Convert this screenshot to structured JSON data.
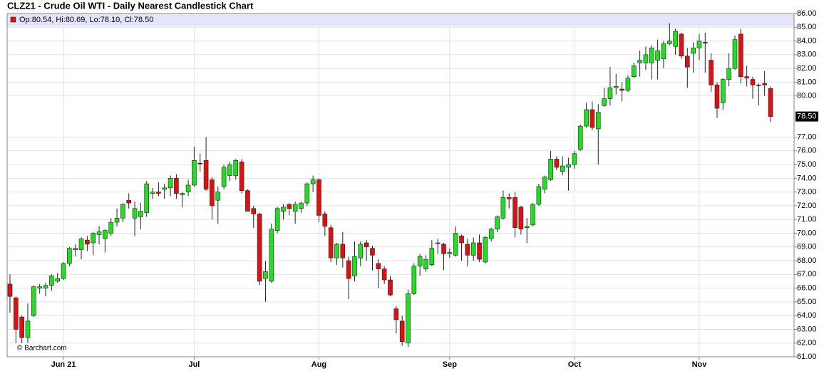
{
  "chart_data": {
    "type": "candlestick",
    "title": "CLZ21 - Crude Oil WTI - Daily Nearest Candlestick Chart",
    "legend_text": "Op:80.54, Hi:80.69, Lo:78.10, Cl:78.50",
    "last_price_label": "78.50",
    "watermark": "© Barchart.com",
    "up_color": "#22dd22",
    "down_color": "#dd1111",
    "grid": true,
    "categories": [
      null,
      null,
      null,
      null,
      null,
      null,
      null,
      null,
      null,
      "Jun 21",
      null,
      null,
      null,
      null,
      null,
      null,
      null,
      null,
      null,
      null,
      null,
      null,
      null,
      null,
      null,
      null,
      null,
      null,
      null,
      null,
      null,
      "Jul",
      null,
      null,
      null,
      null,
      null,
      null,
      null,
      null,
      null,
      null,
      null,
      null,
      null,
      null,
      null,
      null,
      null,
      null,
      null,
      null,
      "Aug",
      null,
      null,
      null,
      null,
      null,
      null,
      null,
      null,
      null,
      null,
      null,
      null,
      null,
      null,
      null,
      null,
      null,
      null,
      null,
      null,
      null,
      "Sep",
      null,
      null,
      null,
      null,
      null,
      null,
      null,
      null,
      null,
      null,
      null,
      null,
      null,
      null,
      null,
      null,
      null,
      null,
      null,
      null,
      "Oct",
      null,
      null,
      null,
      null,
      null,
      null,
      null,
      null,
      null,
      null,
      null,
      null,
      null,
      null,
      null,
      null,
      null,
      null,
      null,
      null,
      "Nov",
      null,
      null,
      null,
      null,
      null,
      null,
      null,
      null,
      null,
      null,
      null,
      null
    ],
    "open": [
      66.3,
      65.3,
      63.9,
      62.4,
      64.0,
      66.0,
      66.0,
      66.2,
      66.5,
      66.7,
      67.8,
      68.8,
      68.8,
      69.5,
      69.3,
      69.9,
      69.6,
      70.0,
      70.8,
      71.1,
      72.4,
      71.1,
      71.2,
      71.5,
      72.9,
      73.0,
      73.2,
      73.3,
      74.0,
      72.8,
      73.0,
      73.5,
      75.1,
      75.3,
      73.9,
      72.4,
      73.4,
      74.2,
      74.2,
      75.2,
      73.1,
      71.8,
      71.4,
      66.7,
      66.5,
      70.2,
      71.6,
      72.1,
      71.6,
      71.8,
      72.2,
      73.6,
      73.9,
      71.4,
      70.4,
      68.2,
      69.2,
      68.0,
      66.9,
      68.2,
      69.3,
      68.9,
      67.8,
      67.4,
      66.6,
      64.5,
      63.6,
      62.0,
      65.6,
      67.6,
      67.4,
      67.7,
      69.3,
      69.2,
      68.5,
      68.4,
      69.8,
      69.2,
      68.4,
      69.3,
      67.9,
      69.6,
      70.3,
      71.1,
      72.6,
      72.6,
      71.9,
      70.4,
      70.6,
      72.1,
      73.2,
      73.9,
      75.4,
      74.5,
      74.8,
      75.0,
      76.1,
      77.8,
      79.0,
      77.6,
      79.3,
      79.8,
      80.6,
      80.5,
      80.4,
      81.4,
      82.4,
      82.4,
      82.4,
      82.6,
      82.7,
      83.8,
      83.6,
      84.5,
      82.9,
      83.1,
      83.5,
      83.9,
      82.6,
      80.8,
      79.5,
      81.2,
      82.0,
      84.5,
      81.4,
      81.2,
      80.8,
      80.9,
      80.54
    ],
    "high": [
      67.0,
      65.4,
      64.0,
      64.9,
      66.2,
      66.3,
      66.4,
      67.0,
      67.1,
      67.9,
      69.0,
      69.2,
      69.7,
      69.8,
      70.1,
      70.5,
      70.3,
      71.1,
      71.8,
      72.2,
      72.9,
      72.3,
      72.2,
      73.8,
      73.3,
      73.7,
      73.6,
      74.2,
      74.3,
      73.0,
      73.9,
      76.3,
      75.8,
      77.0,
      74.1,
      73.4,
      75.0,
      75.2,
      75.4,
      75.4,
      73.2,
      72.0,
      71.5,
      68.0,
      70.7,
      71.9,
      72.1,
      72.2,
      72.3,
      72.3,
      73.7,
      74.2,
      74.0,
      71.6,
      70.6,
      69.3,
      70.1,
      68.3,
      69.4,
      69.4,
      69.5,
      69.1,
      68.1,
      67.6,
      66.9,
      64.7,
      64.0,
      65.9,
      67.8,
      68.5,
      68.4,
      69.5,
      69.6,
      69.3,
      68.9,
      70.5,
      69.9,
      69.6,
      69.7,
      69.9,
      69.8,
      70.4,
      71.3,
      73.1,
      72.9,
      73.0,
      72.0,
      71.1,
      72.2,
      73.6,
      74.2,
      76.0,
      75.6,
      75.6,
      75.5,
      76.0,
      77.9,
      79.5,
      79.6,
      79.4,
      80.6,
      82.1,
      81.6,
      81.0,
      81.5,
      82.4,
      83.3,
      83.6,
      83.7,
      84.1,
      84.0,
      85.3,
      84.9,
      84.6,
      83.5,
      83.9,
      84.5,
      84.6,
      83.1,
      81.0,
      81.3,
      83.1,
      84.4,
      84.9,
      82.2,
      81.4,
      80.9,
      81.8,
      80.69
    ],
    "low": [
      64.2,
      62.0,
      62.0,
      62.0,
      63.9,
      65.6,
      65.4,
      65.8,
      66.4,
      66.6,
      67.6,
      68.3,
      68.1,
      68.7,
      68.4,
      69.2,
      68.6,
      69.8,
      70.5,
      70.8,
      71.8,
      69.8,
      70.3,
      71.2,
      72.5,
      72.7,
      72.5,
      72.7,
      72.5,
      71.9,
      72.7,
      73.4,
      74.5,
      73.1,
      71.0,
      70.7,
      73.2,
      73.8,
      73.9,
      72.9,
      71.6,
      70.4,
      66.2,
      65.0,
      66.4,
      70.0,
      71.0,
      71.3,
      70.7,
      71.5,
      72.0,
      73.0,
      70.8,
      69.8,
      67.9,
      67.7,
      67.5,
      65.2,
      66.5,
      67.6,
      68.0,
      67.3,
      66.0,
      66.3,
      65.4,
      62.7,
      61.8,
      61.7,
      65.5,
      66.9,
      67.2,
      67.6,
      68.5,
      67.3,
      68.2,
      68.3,
      68.0,
      67.6,
      68.0,
      67.9,
      67.8,
      69.4,
      70.1,
      71.0,
      71.8,
      69.7,
      69.9,
      69.3,
      70.5,
      72.0,
      72.9,
      73.8,
      74.6,
      74.2,
      73.1,
      74.7,
      76.0,
      77.7,
      77.5,
      75.0,
      79.2,
      79.3,
      80.1,
      79.6,
      80.3,
      81.3,
      81.4,
      81.9,
      81.2,
      81.2,
      82.0,
      83.7,
      83.0,
      82.7,
      80.6,
      81.7,
      82.6,
      81.7,
      80.3,
      78.4,
      79.0,
      80.7,
      81.9,
      80.9,
      80.7,
      79.8,
      79.3,
      80.0,
      78.1
    ],
    "close": [
      65.4,
      63.0,
      62.4,
      63.6,
      66.1,
      66.1,
      66.2,
      66.9,
      66.7,
      67.8,
      68.9,
      68.9,
      69.6,
      69.2,
      70.0,
      70.1,
      70.2,
      70.8,
      71.1,
      72.1,
      72.2,
      71.8,
      71.6,
      73.6,
      73.0,
      72.9,
      73.3,
      74.0,
      72.9,
      72.9,
      73.5,
      75.3,
      75.1,
      73.2,
      72.0,
      73.0,
      74.8,
      75.0,
      75.3,
      73.1,
      71.6,
      71.4,
      66.5,
      67.2,
      70.3,
      71.8,
      71.9,
      71.8,
      72.1,
      72.2,
      73.6,
      73.9,
      71.3,
      70.5,
      68.2,
      69.2,
      68.2,
      66.7,
      68.3,
      69.2,
      69.0,
      68.4,
      67.4,
      66.6,
      65.5,
      63.7,
      62.1,
      65.6,
      67.6,
      68.3,
      68.1,
      68.9,
      69.3,
      68.5,
      68.6,
      70.0,
      69.3,
      68.4,
      69.3,
      68.1,
      69.7,
      70.3,
      71.2,
      72.6,
      72.5,
      70.4,
      70.3,
      70.5,
      72.1,
      73.4,
      74.1,
      75.4,
      74.8,
      74.9,
      75.0,
      75.8,
      77.8,
      79.0,
      77.7,
      78.8,
      79.8,
      80.6,
      80.7,
      80.4,
      81.3,
      82.2,
      82.6,
      83.0,
      83.5,
      83.3,
      83.8,
      84.0,
      84.7,
      82.9,
      82.1,
      83.5,
      84.0,
      83.9,
      80.8,
      79.1,
      81.2,
      82.0,
      84.1,
      81.4,
      81.3,
      80.8,
      80.8,
      80.8,
      78.5
    ],
    "ylim": [
      61,
      86
    ],
    "yticks": [
      {
        "value": 61,
        "label": "61.00"
      },
      {
        "value": 62,
        "label": "62.00"
      },
      {
        "value": 63,
        "label": "63.00"
      },
      {
        "value": 64,
        "label": "64.00"
      },
      {
        "value": 65,
        "label": "65.00"
      },
      {
        "value": 66,
        "label": "66.00"
      },
      {
        "value": 67,
        "label": "67.00"
      },
      {
        "value": 68,
        "label": "68.00"
      },
      {
        "value": 69,
        "label": "69.00"
      },
      {
        "value": 70,
        "label": "70.00"
      },
      {
        "value": 71,
        "label": "71.00"
      },
      {
        "value": 72,
        "label": "72.00"
      },
      {
        "value": 73,
        "label": "73.00"
      },
      {
        "value": 74,
        "label": "74.00"
      },
      {
        "value": 75,
        "label": "75.00"
      },
      {
        "value": 76,
        "label": "76.00"
      },
      {
        "value": 77,
        "label": "77.00"
      },
      {
        "value": 80,
        "label": "80.00"
      },
      {
        "value": 81,
        "label": "81.00"
      },
      {
        "value": 82,
        "label": "82.00"
      },
      {
        "value": 83,
        "label": "83.00"
      },
      {
        "value": 84,
        "label": "84.00"
      },
      {
        "value": 85,
        "label": "85.00"
      },
      {
        "value": 86,
        "label": "86.00"
      }
    ]
  }
}
